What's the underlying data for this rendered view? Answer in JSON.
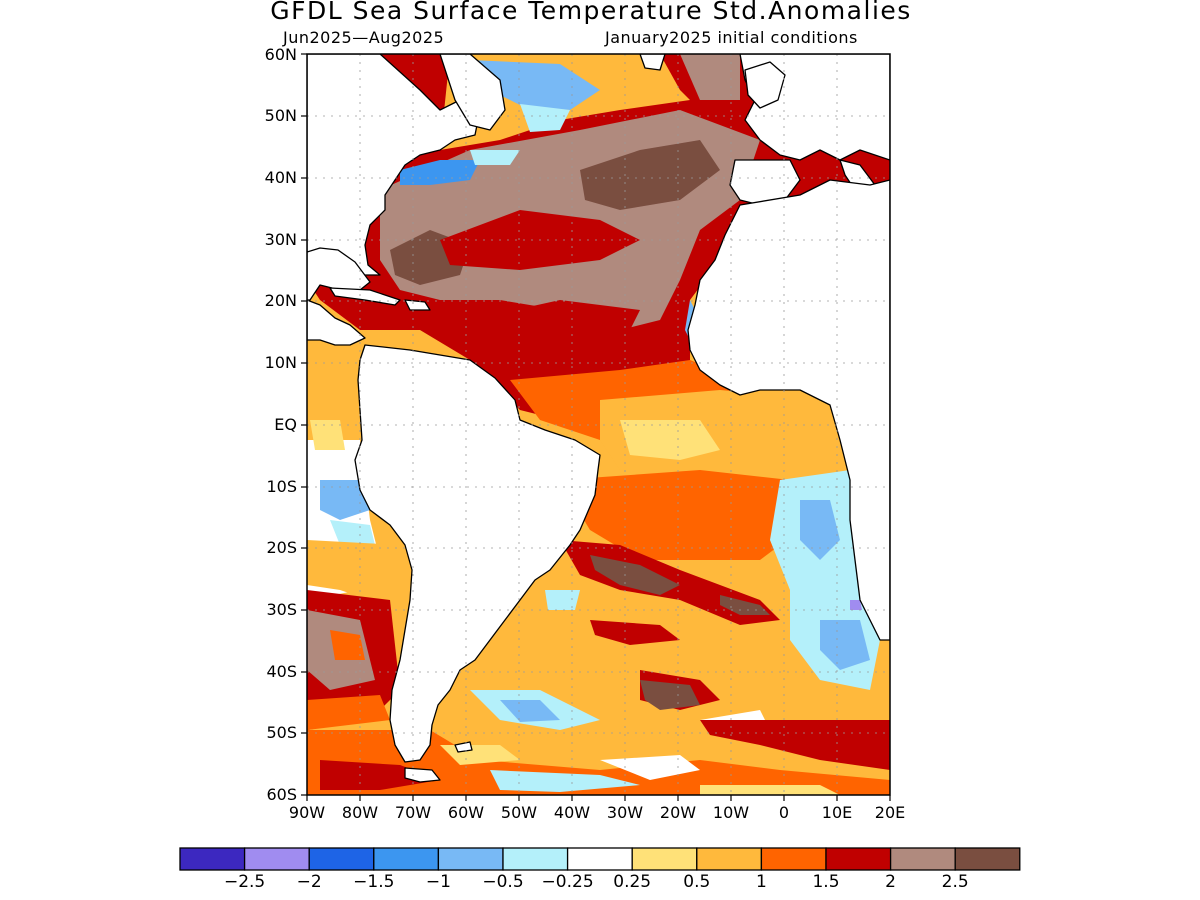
{
  "title": "GFDL Sea Surface Temperature Std.Anomalies",
  "subtitle_left": "Jun2025—Aug2025",
  "subtitle_right": "January2025 initial conditions",
  "map": {
    "region": "Atlantic Ocean",
    "lon_range": [
      -90,
      20
    ],
    "lat_range": [
      -60,
      60
    ],
    "grid": true,
    "lat_labels": [
      "60N",
      "50N",
      "40N",
      "30N",
      "20N",
      "10N",
      "EQ",
      "10S",
      "20S",
      "30S",
      "40S",
      "50S",
      "60S"
    ],
    "lon_labels": [
      "90W",
      "80W",
      "70W",
      "60W",
      "50W",
      "40W",
      "30W",
      "20W",
      "10W",
      "0",
      "10E",
      "20E"
    ]
  },
  "colorbar": {
    "bin_colors": [
      "#3c28c0",
      "#a08cf0",
      "#1e64e6",
      "#3c96f0",
      "#78b9f5",
      "#b4f0fa",
      "#ffffff",
      "#ffe178",
      "#ffb93c",
      "#ff6400",
      "#c00000",
      "#b08a7e",
      "#7a4e40"
    ],
    "labels": [
      "−2.5",
      "−2",
      "−1.5",
      "−1",
      "−0.5",
      "−0.25",
      "0.25",
      "0.5",
      "1",
      "1.5",
      "2",
      "2.5"
    ]
  },
  "colors": {
    "land": "#ffffff",
    "coast": "#000000",
    "frame": "#000000"
  }
}
